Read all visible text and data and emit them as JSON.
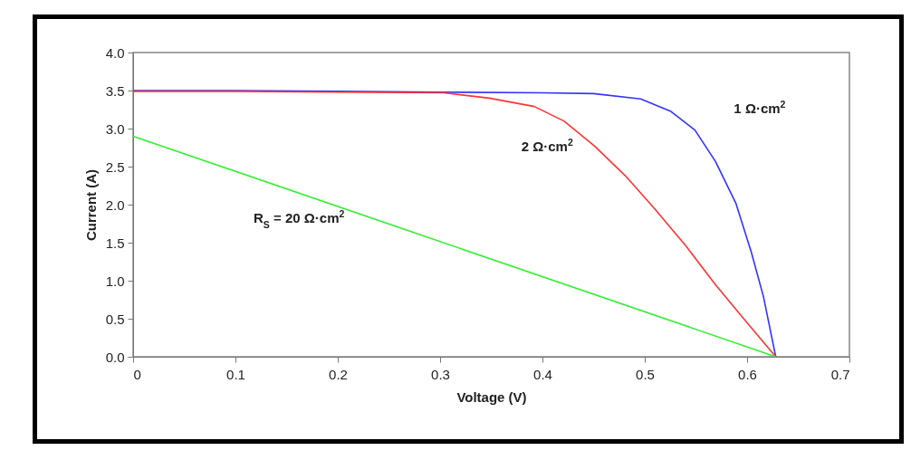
{
  "chart_data": {
    "type": "line",
    "xlabel": "Voltage (V)",
    "ylabel": "Current (A)",
    "xlim": [
      0,
      0.7
    ],
    "xticks": [
      0,
      0.1,
      0.2,
      0.3,
      0.4,
      0.5,
      0.6,
      0.7
    ],
    "ylim": [
      0,
      4
    ],
    "yticks": [
      {
        "value": 0,
        "label": "0.0"
      },
      {
        "value": 0.5,
        "label": "0.5"
      },
      {
        "value": 1,
        "label": "1.0"
      },
      {
        "value": 1.5,
        "label": "1.5"
      },
      {
        "value": 2,
        "label": "2.0"
      },
      {
        "value": 2.5,
        "label": "2.5"
      },
      {
        "value": 3,
        "label": "3.0"
      },
      {
        "value": 3.5,
        "label": "3.5"
      },
      {
        "value": 4,
        "label": "4.0"
      }
    ],
    "grid": false,
    "legend": false,
    "marker": "none",
    "line_style": "solid",
    "series": [
      {
        "name": "1 Ω·cm$^{2}$",
        "color": "#3333ff",
        "x": [
          0,
          0.1,
          0.2,
          0.3,
          0.4,
          0.45,
          0.496,
          0.525,
          0.549,
          0.569,
          0.589,
          0.604,
          0.616,
          0.628
        ],
        "values": [
          3.5,
          3.5,
          3.49,
          3.48,
          3.47,
          3.46,
          3.39,
          3.23,
          2.98,
          2.57,
          2.02,
          1.38,
          0.79,
          0
        ]
      },
      {
        "name": "2 Ω·cm$^{2}$",
        "color": "#ff3333",
        "x": [
          0,
          0.1,
          0.2,
          0.304,
          0.348,
          0.392,
          0.421,
          0.451,
          0.481,
          0.51,
          0.54,
          0.569,
          0.598,
          0.628
        ],
        "values": [
          3.49,
          3.49,
          3.48,
          3.47,
          3.4,
          3.29,
          3.1,
          2.77,
          2.38,
          1.94,
          1.46,
          0.95,
          0.48,
          0
        ]
      },
      {
        "name": "R$_{S}$ = 20 Ω·cm$^{2}$",
        "color": "#33ee33",
        "x": [
          0,
          0.628
        ],
        "values": [
          2.9,
          0
        ]
      }
    ]
  }
}
